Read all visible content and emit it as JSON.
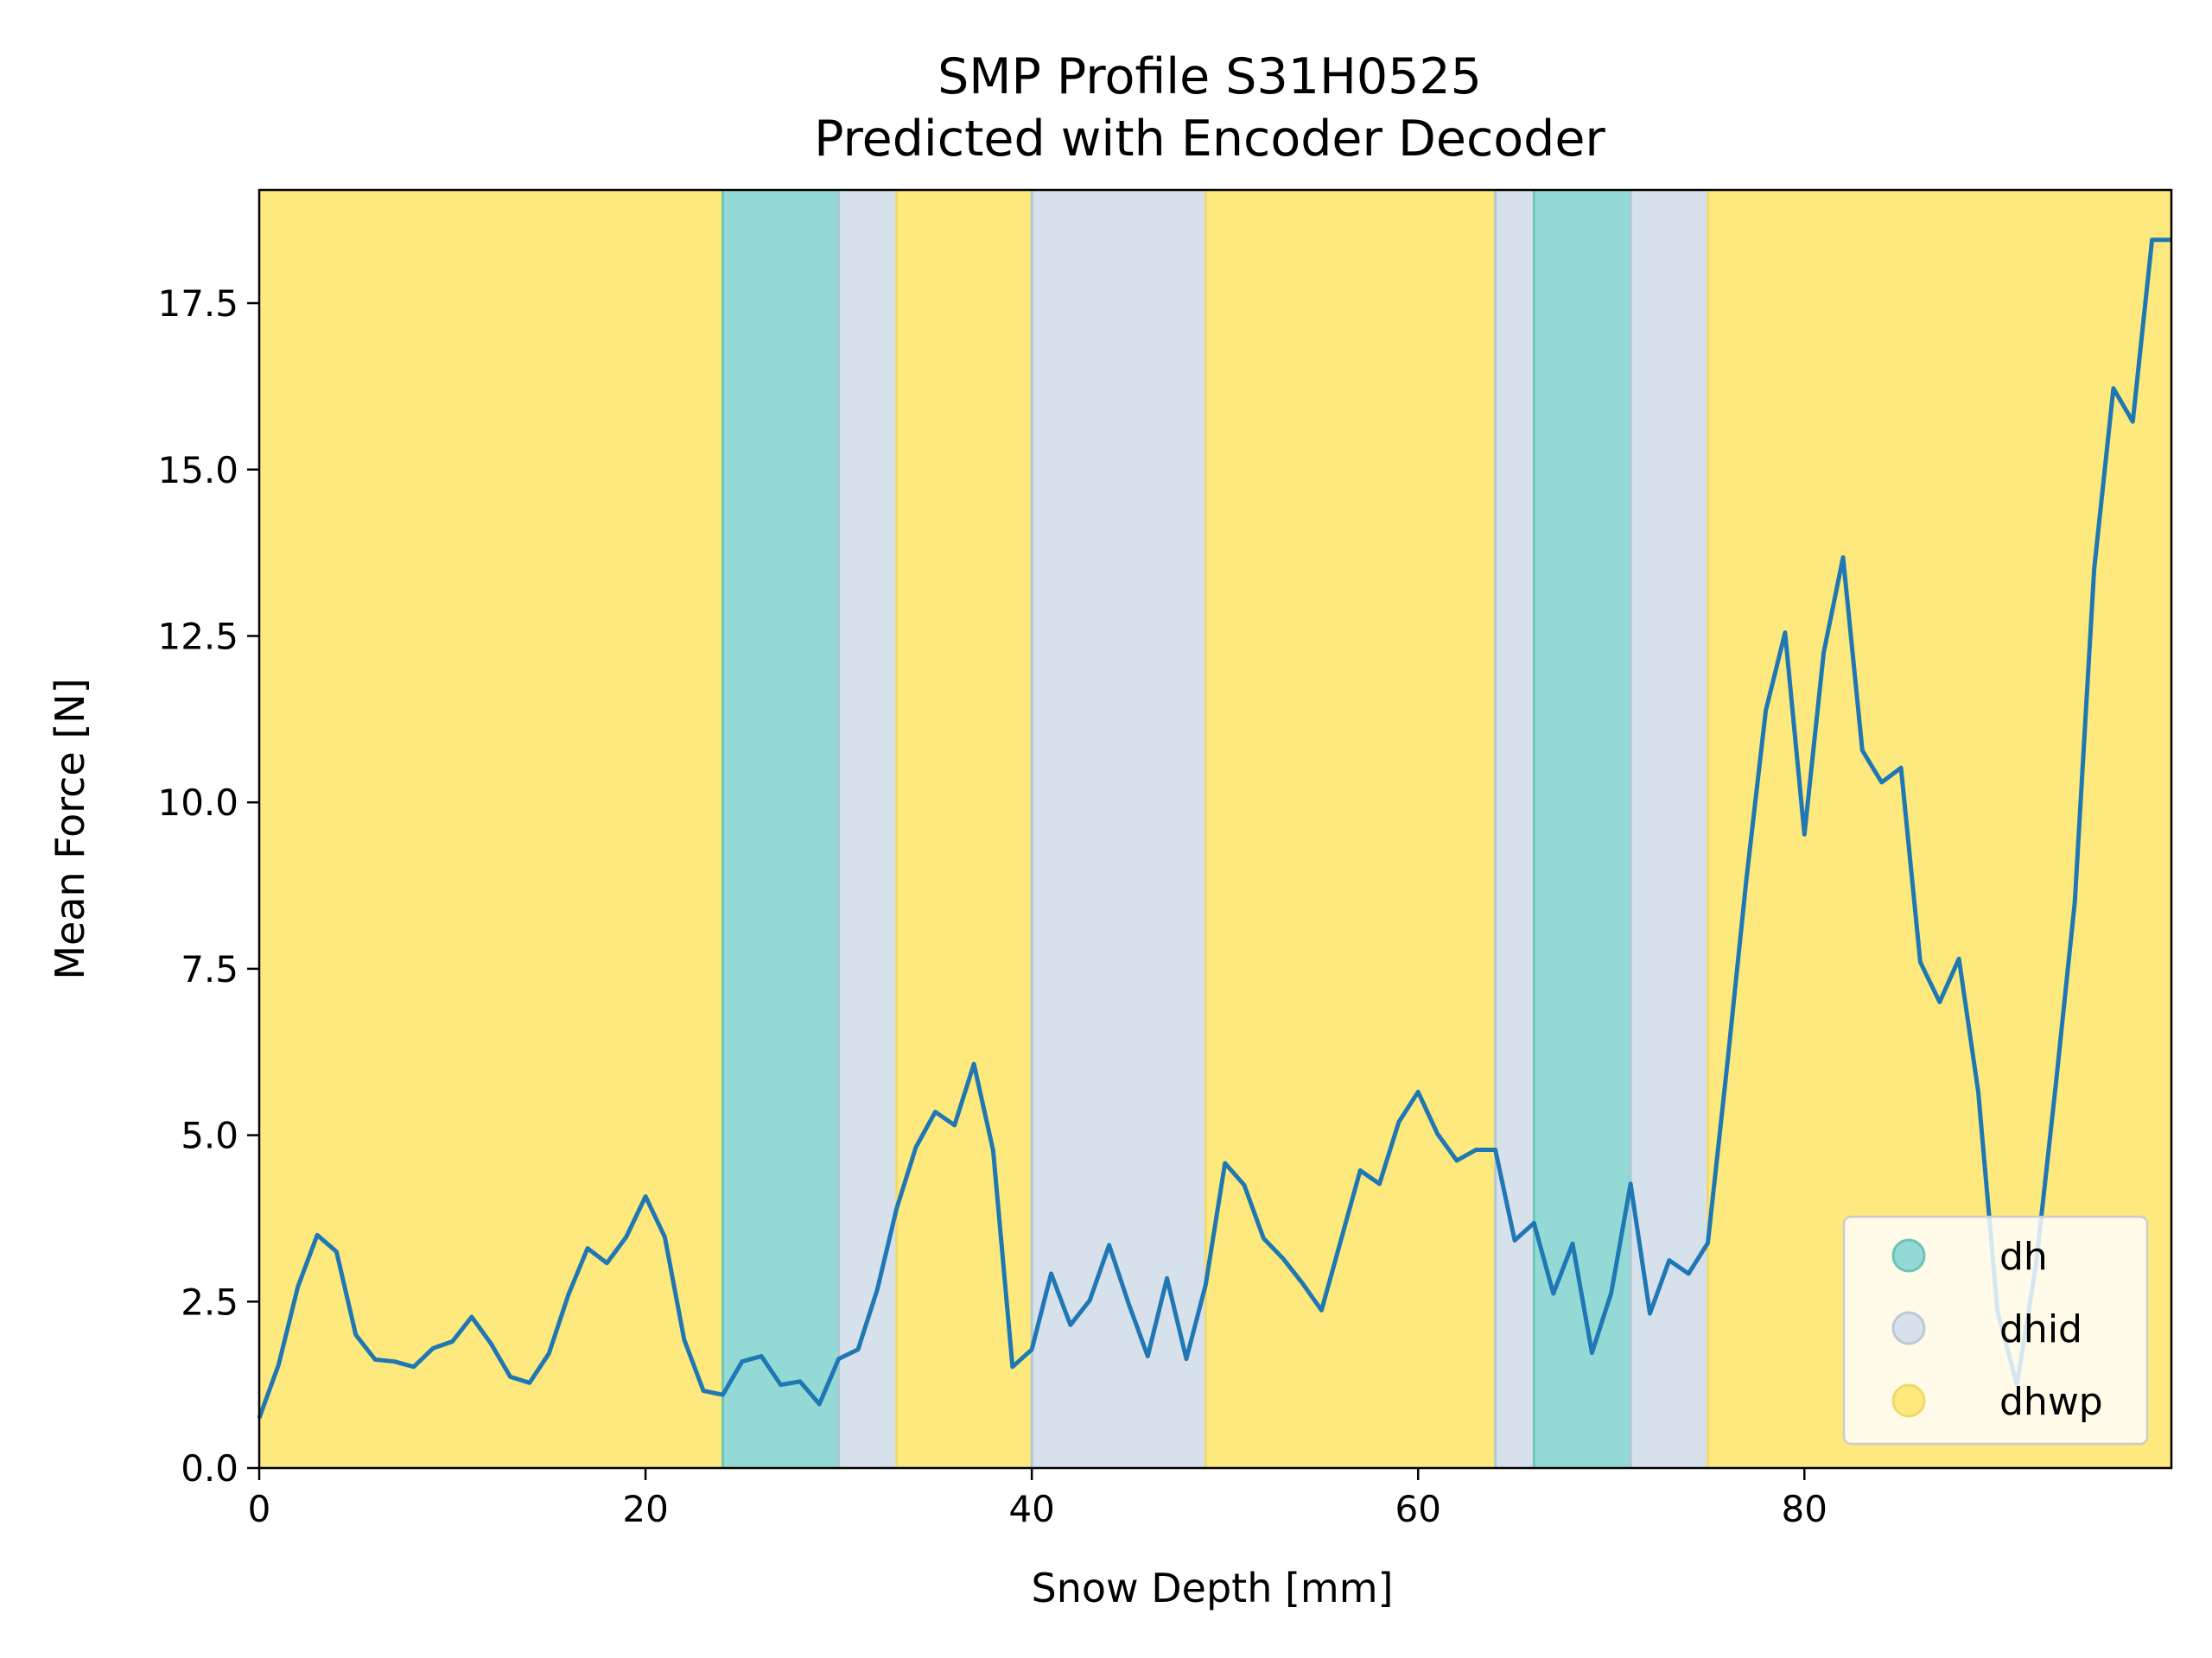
{
  "chart_data": {
    "type": "line",
    "title": "SMP Profile S31H0525",
    "subtitle": "Predicted with Encoder Decoder",
    "xlabel": "Snow Depth [mm]",
    "ylabel": "Mean Force [N]",
    "xlim": [
      0,
      99
    ],
    "ylim": [
      0,
      19.2
    ],
    "xticks": [
      0,
      20,
      40,
      60,
      80
    ],
    "xtick_labels": [
      "0",
      "20",
      "40",
      "60",
      "80"
    ],
    "yticks": [
      0,
      2.5,
      5,
      7.5,
      10,
      12.5,
      15,
      17.5
    ],
    "ytick_labels": [
      "0.0",
      "2.5",
      "5.0",
      "7.5",
      "10.0",
      "12.5",
      "15.0",
      "17.5"
    ],
    "grid": false,
    "legend_position": "lower-right",
    "colors": {
      "line": "#1f77b4",
      "dh": "#93d9d6",
      "dhid": "#d6e1ec",
      "dhwp": "#fde97e",
      "dh_edge": "#6cc3b7",
      "dhid_edge": "#a9c7d4",
      "dhwp_edge": "#f1d86a"
    },
    "legend": [
      {
        "label": "dh",
        "color": "#93d9d6",
        "edge": "#6cc3b7"
      },
      {
        "label": "dhid",
        "color": "#d6e1ec",
        "edge": "#bccad6"
      },
      {
        "label": "dhwp",
        "color": "#fde97e",
        "edge": "#f1d86a"
      }
    ],
    "segments": [
      {
        "start": 0,
        "end": 24,
        "class": "dhwp"
      },
      {
        "start": 24,
        "end": 30,
        "class": "dh"
      },
      {
        "start": 30,
        "end": 33,
        "class": "dhid"
      },
      {
        "start": 33,
        "end": 40,
        "class": "dhwp"
      },
      {
        "start": 40,
        "end": 49,
        "class": "dhid"
      },
      {
        "start": 49,
        "end": 64,
        "class": "dhwp"
      },
      {
        "start": 64,
        "end": 66,
        "class": "dhid"
      },
      {
        "start": 66,
        "end": 71,
        "class": "dh"
      },
      {
        "start": 71,
        "end": 75,
        "class": "dhid"
      },
      {
        "start": 75,
        "end": 99,
        "class": "dhwp"
      }
    ],
    "series": [
      {
        "x": [
          0,
          1,
          2,
          3,
          4,
          5,
          6,
          7,
          8,
          9,
          10,
          11,
          12,
          13,
          14,
          15,
          16,
          17,
          18,
          19,
          20,
          21,
          22,
          23,
          24,
          25,
          26,
          27,
          28,
          29,
          30,
          31,
          32,
          33,
          34,
          35,
          36,
          37,
          38,
          39,
          40,
          41,
          42,
          43,
          44,
          45,
          46,
          47,
          48,
          49,
          50,
          51,
          52,
          53,
          54,
          55,
          56,
          57,
          58,
          59,
          60,
          61,
          62,
          63,
          64,
          65,
          66,
          67,
          68,
          69,
          70,
          71,
          72,
          73,
          74,
          75,
          76,
          77,
          78,
          79,
          80,
          81,
          82,
          83,
          84,
          85,
          86,
          87,
          88,
          89,
          90,
          91,
          92,
          93,
          94,
          95,
          96,
          97,
          98,
          99
        ],
        "y": [
          0.75,
          1.55,
          2.72,
          3.5,
          3.25,
          2.0,
          1.63,
          1.6,
          1.52,
          1.8,
          1.9,
          2.27,
          1.87,
          1.37,
          1.28,
          1.72,
          2.6,
          3.3,
          3.08,
          3.47,
          4.08,
          3.47,
          1.93,
          1.16,
          1.1,
          1.6,
          1.68,
          1.25,
          1.3,
          0.96,
          1.64,
          1.78,
          2.68,
          3.9,
          4.82,
          5.35,
          5.15,
          6.07,
          4.77,
          1.52,
          1.78,
          2.92,
          2.15,
          2.52,
          3.35,
          2.48,
          1.68,
          2.85,
          1.64,
          2.75,
          4.58,
          4.25,
          3.45,
          3.15,
          2.78,
          2.37,
          3.42,
          4.47,
          4.27,
          5.2,
          5.65,
          5.02,
          4.62,
          4.78,
          4.78,
          3.42,
          3.68,
          2.62,
          3.37,
          1.73,
          2.63,
          4.27,
          2.32,
          3.12,
          2.92,
          3.38,
          6.05,
          8.85,
          11.38,
          12.55,
          9.52,
          12.25,
          13.68,
          10.78,
          10.3,
          10.52,
          7.6,
          7.0,
          7.65,
          5.65,
          2.35,
          1.25,
          3.07,
          5.72,
          8.5,
          13.5,
          16.22,
          15.72,
          18.45,
          18.45
        ]
      }
    ]
  }
}
